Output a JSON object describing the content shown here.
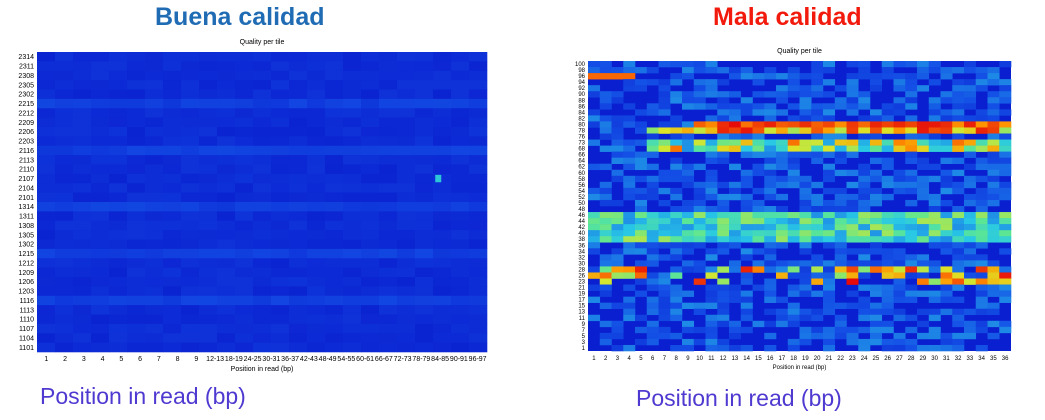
{
  "page": {
    "left_title": "Buena calidad",
    "right_title": "Mala calidad",
    "left_caption": "Position in read (bp)",
    "right_caption": "Position in read (bp)"
  },
  "colors": {
    "left_title": "#1f6bb4",
    "right_title": "#f21a0c",
    "caption": "#4f3ad1",
    "heat_low": "#0a1fd0",
    "heat_high": "#ff0000"
  },
  "chart_data": [
    {
      "type": "heatmap",
      "title": "Quality per tile",
      "xlabel": "Position in read (bp)",
      "ylabel": "",
      "x_labels": [
        "1",
        "2",
        "3",
        "4",
        "5",
        "6",
        "7",
        "8",
        "9",
        "12-13",
        "18-19",
        "24-25",
        "30-31",
        "36-37",
        "42-43",
        "48-49",
        "54-55",
        "60-61",
        "66-67",
        "72-73",
        "78-79",
        "84-85",
        "90-91",
        "96-97"
      ],
      "y_labels": [
        "2314",
        "2311",
        "2308",
        "2305",
        "2302",
        "2215",
        "2212",
        "2209",
        "2206",
        "2203",
        "2116",
        "2113",
        "2110",
        "2107",
        "2104",
        "2101",
        "1314",
        "1311",
        "1308",
        "1305",
        "1302",
        "1215",
        "1212",
        "1209",
        "1206",
        "1203",
        "1116",
        "1113",
        "1110",
        "1107",
        "1104",
        "1101"
      ],
      "highlights": [
        {
          "row": "2107",
          "x": "90-91",
          "level": "medium"
        }
      ]
    },
    {
      "type": "heatmap",
      "title": "Quality per tile",
      "xlabel": "Position in read (bp)",
      "ylabel": "",
      "x_labels": [
        "1",
        "2",
        "3",
        "4",
        "5",
        "6",
        "7",
        "8",
        "9",
        "10",
        "11",
        "12",
        "13",
        "14",
        "15",
        "16",
        "17",
        "18",
        "19",
        "20",
        "21",
        "22",
        "23",
        "24",
        "25",
        "26",
        "27",
        "28",
        "29",
        "30",
        "31",
        "32",
        "33",
        "34",
        "35",
        "36"
      ],
      "y_labels": [
        "100",
        "98",
        "96",
        "94",
        "92",
        "90",
        "88",
        "86",
        "84",
        "82",
        "80",
        "78",
        "76",
        "73",
        "68",
        "66",
        "64",
        "62",
        "60",
        "58",
        "56",
        "54",
        "52",
        "50",
        "48",
        "46",
        "44",
        "42",
        "40",
        "38",
        "36",
        "34",
        "32",
        "30",
        "28",
        "26",
        "23",
        "21",
        "19",
        "17",
        "15",
        "13",
        "11",
        "9",
        "7",
        "5",
        "3",
        "1"
      ],
      "bad_rows": [
        "96",
        "80",
        "78",
        "73",
        "68",
        "28",
        "26",
        "23"
      ]
    }
  ]
}
